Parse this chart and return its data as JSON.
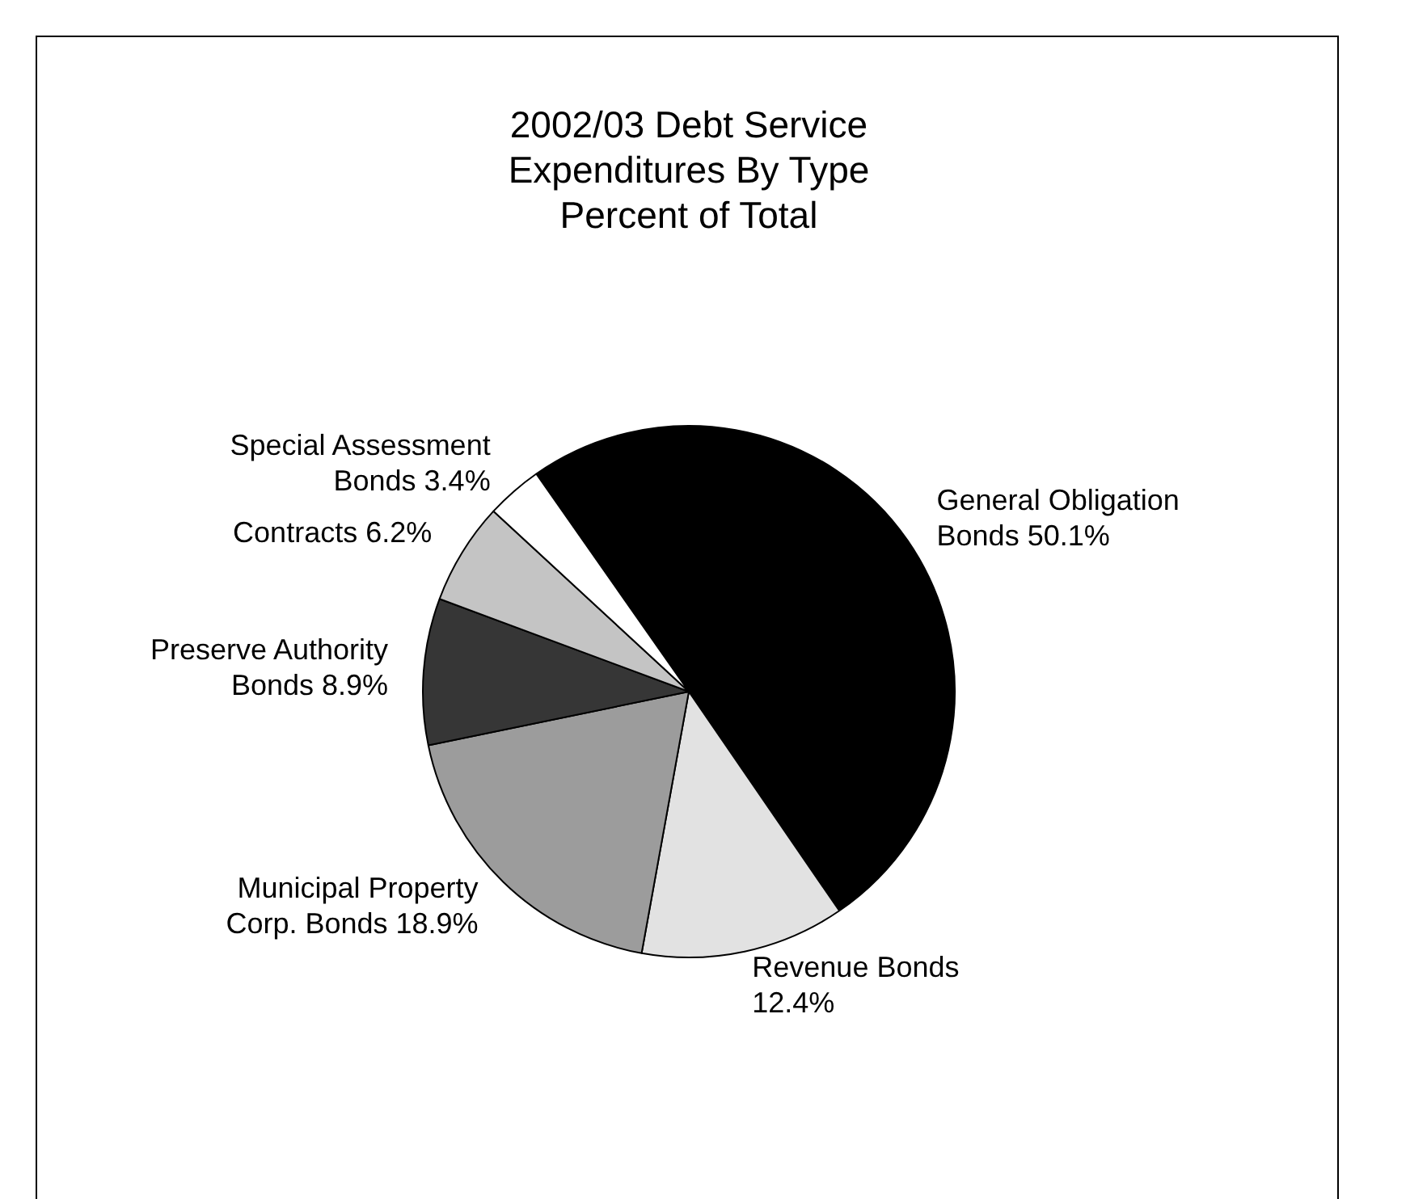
{
  "chart_data": {
    "type": "pie",
    "title": "2002/03 Debt Service Expenditures By Type",
    "subtitle": "Percent of Total",
    "categories": [
      "General Obligation Bonds",
      "Revenue Bonds",
      "Municipal Property Corp. Bonds",
      "Preserve Authority Bonds",
      "Contracts",
      "Special Assessment Bonds"
    ],
    "values": [
      50.1,
      12.4,
      18.9,
      8.9,
      6.2,
      3.4
    ],
    "value_labels": [
      "50.1%",
      "12.4%",
      "18.9%",
      "8.9%",
      "6.2%",
      "3.4%"
    ],
    "colors": [
      "#000000",
      "#e2e2e2",
      "#9c9c9c",
      "#363636",
      "#c4c4c4",
      "#ffffff"
    ],
    "legend": false
  }
}
